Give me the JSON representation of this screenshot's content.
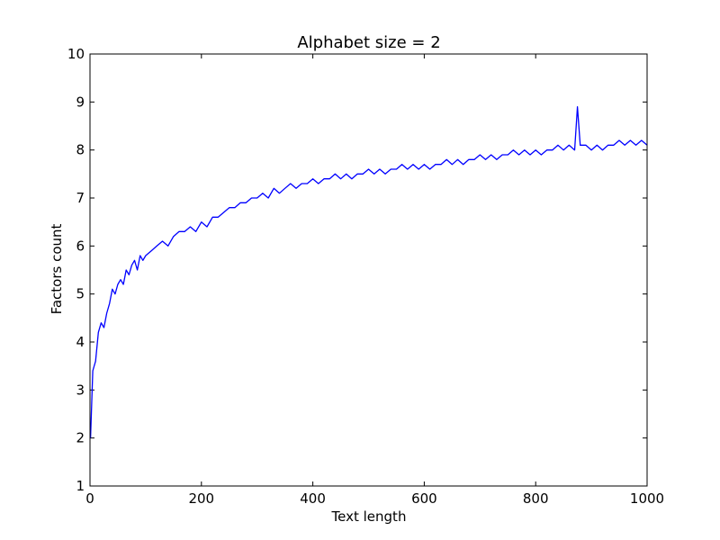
{
  "chart_data": {
    "type": "line",
    "title": "Alphabet size = 2",
    "xlabel": "Text length",
    "ylabel": "Factors count",
    "xlim": [
      0,
      1000
    ],
    "ylim": [
      1,
      10
    ],
    "xticks": [
      0,
      200,
      400,
      600,
      800,
      1000
    ],
    "yticks": [
      1,
      2,
      3,
      4,
      5,
      6,
      7,
      8,
      9,
      10
    ],
    "grid": false,
    "legend": "none",
    "series": [
      {
        "color": "#0000ff",
        "x": [
          1,
          5,
          10,
          15,
          20,
          25,
          30,
          35,
          40,
          45,
          50,
          55,
          60,
          65,
          70,
          75,
          80,
          85,
          90,
          95,
          100,
          110,
          120,
          130,
          140,
          150,
          160,
          170,
          180,
          190,
          200,
          210,
          220,
          230,
          240,
          250,
          260,
          270,
          280,
          290,
          300,
          310,
          320,
          330,
          340,
          350,
          360,
          370,
          380,
          390,
          400,
          410,
          420,
          430,
          440,
          450,
          460,
          470,
          480,
          490,
          500,
          510,
          520,
          530,
          540,
          550,
          560,
          570,
          580,
          590,
          600,
          610,
          620,
          630,
          640,
          650,
          660,
          670,
          680,
          690,
          700,
          710,
          720,
          730,
          740,
          750,
          760,
          770,
          780,
          790,
          800,
          810,
          820,
          830,
          840,
          850,
          860,
          870,
          875,
          880,
          890,
          900,
          910,
          920,
          930,
          940,
          950,
          960,
          970,
          980,
          990,
          1000
        ],
        "y": [
          2.0,
          3.4,
          3.6,
          4.2,
          4.4,
          4.3,
          4.6,
          4.8,
          5.1,
          5.0,
          5.2,
          5.3,
          5.2,
          5.5,
          5.4,
          5.6,
          5.7,
          5.5,
          5.8,
          5.7,
          5.8,
          5.9,
          6.0,
          6.1,
          6.0,
          6.2,
          6.3,
          6.3,
          6.4,
          6.3,
          6.5,
          6.4,
          6.6,
          6.6,
          6.7,
          6.8,
          6.8,
          6.9,
          6.9,
          7.0,
          7.0,
          7.1,
          7.0,
          7.2,
          7.1,
          7.2,
          7.3,
          7.2,
          7.3,
          7.3,
          7.4,
          7.3,
          7.4,
          7.4,
          7.5,
          7.4,
          7.5,
          7.4,
          7.5,
          7.5,
          7.6,
          7.5,
          7.6,
          7.5,
          7.6,
          7.6,
          7.7,
          7.6,
          7.7,
          7.6,
          7.7,
          7.6,
          7.7,
          7.7,
          7.8,
          7.7,
          7.8,
          7.7,
          7.8,
          7.8,
          7.9,
          7.8,
          7.9,
          7.8,
          7.9,
          7.9,
          8.0,
          7.9,
          8.0,
          7.9,
          8.0,
          7.9,
          8.0,
          8.0,
          8.1,
          8.0,
          8.1,
          8.0,
          8.9,
          8.1,
          8.1,
          8.0,
          8.1,
          8.0,
          8.1,
          8.1,
          8.2,
          8.1,
          8.2,
          8.1,
          8.2,
          8.1
        ]
      }
    ]
  }
}
